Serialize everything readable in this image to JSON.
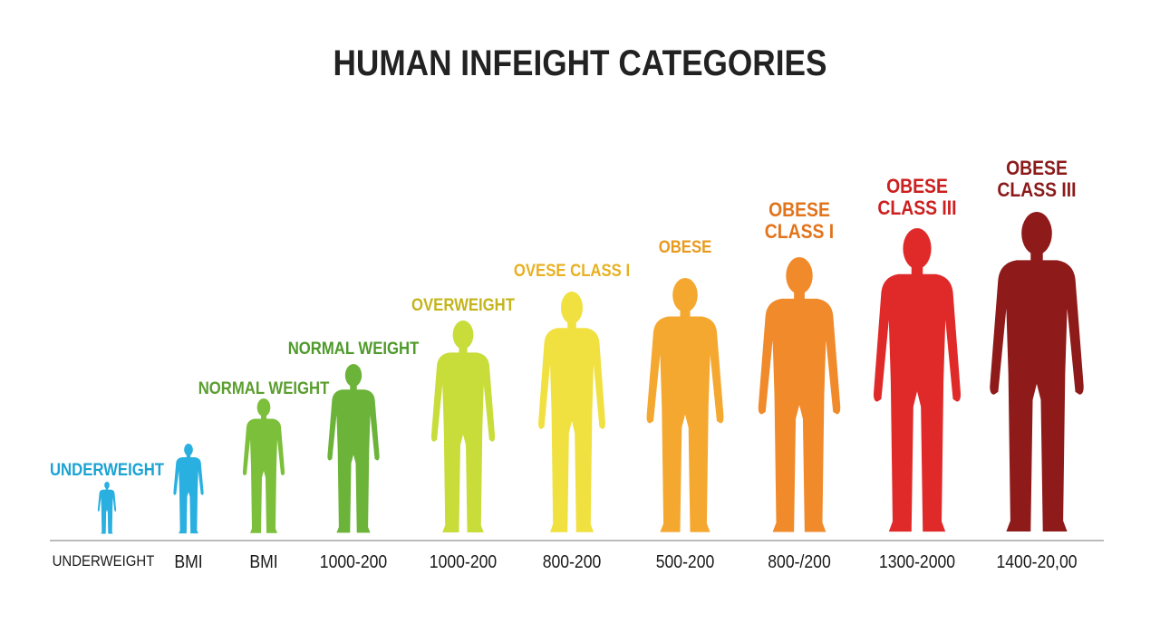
{
  "header": {
    "title": "HUMAN INFEIGHT CATEGORIES"
  },
  "figures": [
    {
      "label": [
        "UNDERWEIGHT"
      ],
      "range": "UNDERWEIGHT"
    },
    {
      "range": "BMI"
    },
    {
      "label": [
        "NORMAL WEIGHT"
      ],
      "range": "BMI"
    },
    {
      "label": [
        "NORMAL WEIGHT"
      ],
      "range": "1000-200"
    },
    {
      "label": [
        "OVERWEIGHT"
      ],
      "range": "1000-200"
    },
    {
      "label": [
        "OVESE CLASS I"
      ],
      "range": "800-200"
    },
    {
      "label": [
        "OBESE"
      ],
      "range": "500-200"
    },
    {
      "label": [
        "OBESE",
        "CLASS I"
      ],
      "range": "800-/200"
    },
    {
      "label": [
        "OBESE",
        "CLASS III"
      ],
      "range": "1300-2000"
    },
    {
      "label": [
        "OBESE",
        "CLASS III"
      ],
      "range": "1400-20,00"
    }
  ]
}
